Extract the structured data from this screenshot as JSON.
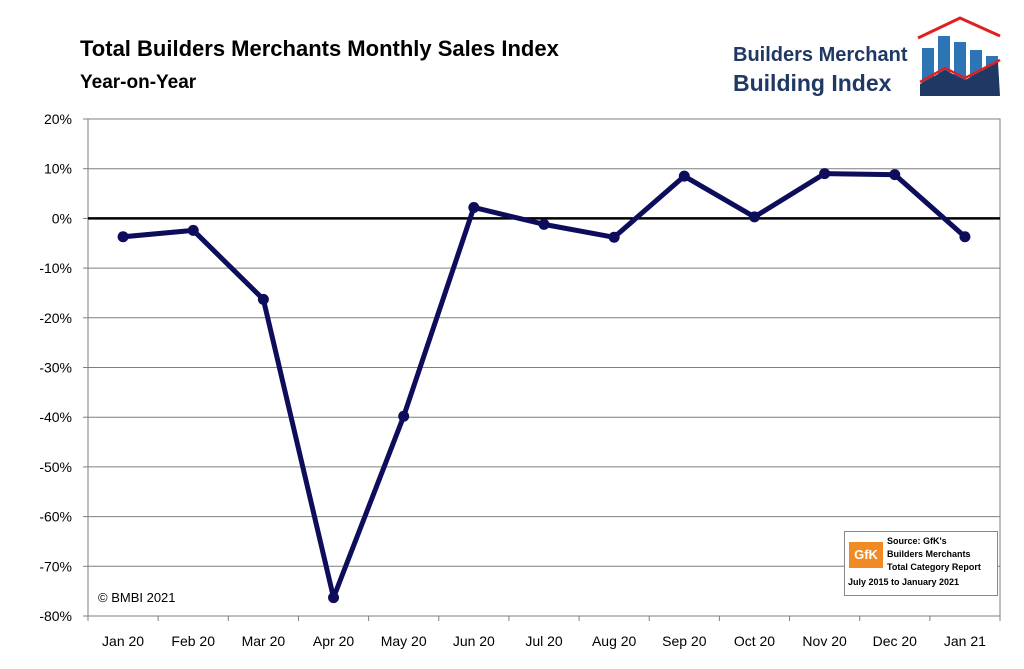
{
  "header": {
    "title": "Total Builders Merchants Monthly Sales Index",
    "subtitle": "Year-on-Year"
  },
  "logo": {
    "line1": "Builders Merchant",
    "line2": "Building Index",
    "colors": {
      "text": "#1f3864",
      "roof": "#e02020",
      "bars": "#2e75b6"
    }
  },
  "footer": {
    "copyright": "© BMBI 2021"
  },
  "source": {
    "badge": "GfK",
    "line1": "Source: GfK's",
    "line2": "Builders Merchants",
    "line3": "Total Category Report",
    "line4": "July 2015 to January 2021"
  },
  "chart_data": {
    "type": "line",
    "title": "Total Builders Merchants Monthly Sales Index",
    "subtitle": "Year-on-Year",
    "categories": [
      "Jan 20",
      "Feb 20",
      "Mar 20",
      "Apr 20",
      "May 20",
      "Jun 20",
      "Jul 20",
      "Aug 20",
      "Sep 20",
      "Oct 20",
      "Nov 20",
      "Dec 20",
      "Jan 21"
    ],
    "series": [
      {
        "values": [
          -3.7,
          -2.4,
          -16.3,
          -76.3,
          -39.8,
          2.2,
          -1.2,
          -3.8,
          8.5,
          0.3,
          9.0,
          8.8,
          -3.7
        ]
      }
    ],
    "ylim": [
      -80,
      20
    ],
    "yticks": [
      20,
      10,
      0,
      -10,
      -20,
      -30,
      -40,
      -50,
      -60,
      -70,
      -80
    ],
    "ytick_labels": [
      "20%",
      "10%",
      "0%",
      "-10%",
      "-20%",
      "-30%",
      "-40%",
      "-50%",
      "-60%",
      "-70%",
      "-80%"
    ],
    "grid": true,
    "legend": "none",
    "line_color": "#0d0d5c"
  }
}
